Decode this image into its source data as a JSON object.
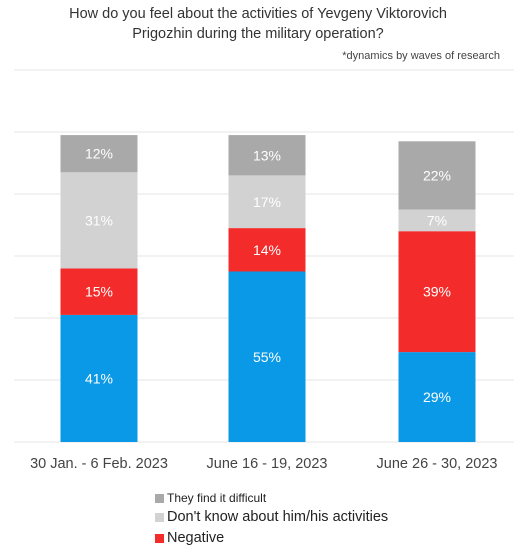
{
  "chart_data": {
    "type": "bar",
    "stacked": true,
    "title_lines": [
      "How do you feel about the activities of Yevgeny Viktorovich",
      "Prigozhin during the military operation?"
    ],
    "note": "*dynamics by waves of research",
    "categories": [
      "30 Jan. - 6 Feb. 2023",
      "June 16 - 19, 2023",
      "June 26 - 30, 2023"
    ],
    "series": [
      {
        "name": "",
        "values": [
          41,
          55,
          29
        ],
        "labels": [
          "41%",
          "55%",
          "29%"
        ],
        "color": "#0a99e6"
      },
      {
        "name": "Negative",
        "values": [
          15,
          14,
          39
        ],
        "labels": [
          "15%",
          "14%",
          "39%"
        ],
        "color": "#f42b2b"
      },
      {
        "name": "Don't know about him/his activities",
        "values": [
          31,
          17,
          7
        ],
        "labels": [
          "31%",
          "17%",
          "7%"
        ],
        "color": "#d2d2d2"
      },
      {
        "name": "They find it difficult",
        "values": [
          12,
          13,
          22
        ],
        "labels": [
          "12%",
          "13%",
          "22%"
        ],
        "color": "#a9a9a9"
      }
    ],
    "grid": true,
    "legend_position": "bottom"
  }
}
